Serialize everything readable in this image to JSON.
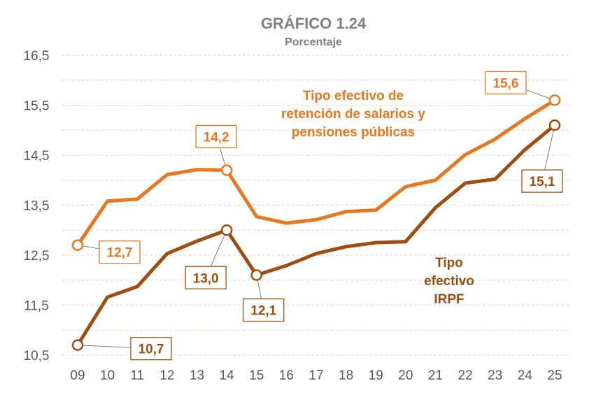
{
  "chart_data": {
    "type": "line",
    "title": "GRÁFICO 1.24",
    "subtitle": "Porcentaje",
    "xlabel": "",
    "ylabel": "",
    "categories": [
      "09",
      "10",
      "11",
      "12",
      "13",
      "14",
      "15",
      "16",
      "17",
      "18",
      "19",
      "20",
      "21",
      "22",
      "23",
      "24",
      "25"
    ],
    "yticks": [
      "10,5",
      "11,5",
      "12,5",
      "13,5",
      "14,5",
      "15,5",
      "16,5"
    ],
    "ylim": [
      10.5,
      16.5
    ],
    "grid": true,
    "series": [
      {
        "name": "Tipo efectivo de retención  de salarios y pensiones públicas",
        "label_lines": [
          "Tipo efectivo de",
          "retención  de salarios y",
          "pensiones públicas"
        ],
        "color": "#E8771E",
        "values": [
          12.7,
          13.58,
          13.62,
          14.11,
          14.21,
          14.2,
          13.27,
          13.14,
          13.21,
          13.37,
          13.4,
          13.87,
          14.0,
          14.51,
          14.82,
          15.23,
          15.6
        ],
        "annotations": [
          {
            "index": 0,
            "text": "12,7"
          },
          {
            "index": 5,
            "text": "14,2"
          },
          {
            "index": 16,
            "text": "15,6"
          }
        ]
      },
      {
        "name": "Tipo efectivo IRPF",
        "label_lines": [
          "Tipo",
          "efectivo",
          "IRPF"
        ],
        "color": "#9E4E0E",
        "values": [
          10.7,
          11.66,
          11.87,
          12.53,
          12.78,
          13.0,
          12.1,
          12.29,
          12.53,
          12.67,
          12.75,
          12.77,
          13.45,
          13.94,
          14.02,
          14.61,
          15.1
        ],
        "annotations": [
          {
            "index": 0,
            "text": "10,7"
          },
          {
            "index": 5,
            "text": "13,0"
          },
          {
            "index": 6,
            "text": "12,1"
          },
          {
            "index": 16,
            "text": "15,1"
          }
        ]
      }
    ]
  }
}
